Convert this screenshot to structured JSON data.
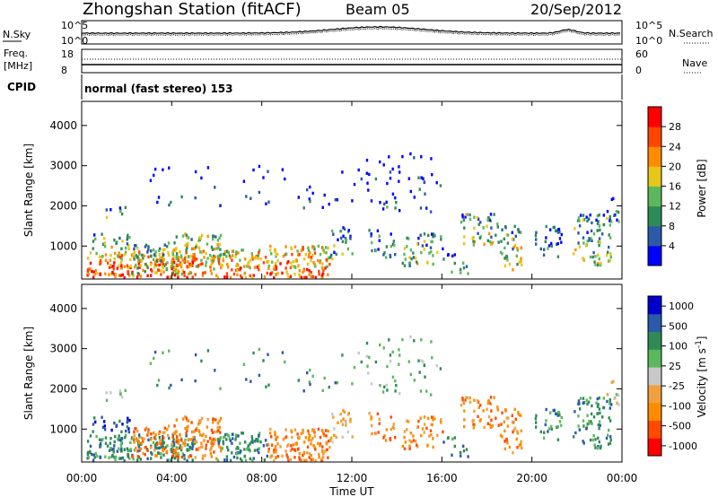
{
  "header": {
    "title": "Zhongshan Station (fitACF)",
    "beam": "Beam 05",
    "date": "20/Sep/2012"
  },
  "noise_panel": {
    "left_label": "N.Sky",
    "left_ticks": [
      "10^5",
      "10^0"
    ],
    "right_label": "N.Search",
    "right_ticks": [
      "10^5",
      "10^0"
    ]
  },
  "freq_panel": {
    "left_label_1": "Freq.",
    "left_label_2": "[MHz]",
    "left_ticks": [
      "18",
      "8"
    ],
    "right_label": "Nave",
    "right_ticks": [
      "60",
      "0"
    ]
  },
  "cpid": {
    "label": "CPID",
    "text": "normal (fast stereo) 153"
  },
  "colors": {
    "power": [
      "#0000ff",
      "#2a5aa8",
      "#2e8b57",
      "#5cb85c",
      "#e6c619",
      "#ff8c00",
      "#ff4500",
      "#ff0000"
    ],
    "velocity": [
      "#ff0000",
      "#ff4a00",
      "#ff8c00",
      "#f0a040",
      "#c8c8c8",
      "#5cb85c",
      "#2e8b57",
      "#2a5aa8",
      "#0000cc"
    ]
  },
  "chart_data": [
    {
      "type": "heatmap",
      "title": "",
      "xlabel": "Time UT",
      "ylabel": "Slant Range [km]",
      "x_ticks": [
        "00:00",
        "04:00",
        "08:00",
        "12:00",
        "16:00",
        "20:00",
        "00:00"
      ],
      "y_ticks": [
        "1000",
        "2000",
        "3000",
        "4000"
      ],
      "ylim": [
        180,
        4600
      ],
      "colorbar_label": "Power [dB]",
      "colorbar_ticks": [
        "4",
        "8",
        "12",
        "16",
        "20",
        "24",
        "28"
      ],
      "clim": [
        0,
        30
      ]
    },
    {
      "type": "heatmap",
      "title": "",
      "xlabel": "Time UT",
      "ylabel": "Slant Range [km]",
      "x_ticks": [
        "00:00",
        "04:00",
        "08:00",
        "12:00",
        "16:00",
        "20:00",
        "00:00"
      ],
      "y_ticks": [
        "1000",
        "2000",
        "3000",
        "4000"
      ],
      "ylim": [
        180,
        4600
      ],
      "colorbar_label": "Velocity [m s^-1]",
      "colorbar_ticks": [
        "1000",
        "500",
        "100",
        "25",
        "-25",
        "-100",
        "-500",
        "-1000"
      ],
      "clim": [
        -1000,
        1000
      ]
    }
  ]
}
